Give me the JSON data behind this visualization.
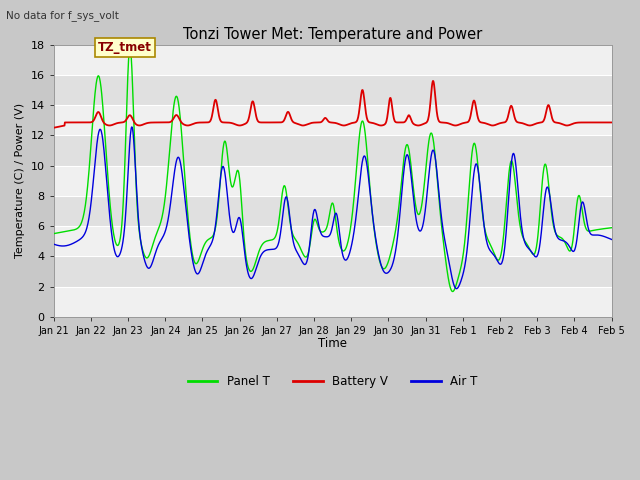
{
  "title": "Tonzi Tower Met: Temperature and Power",
  "top_left_text": "No data for f_sys_volt",
  "annotation_text": "TZ_tmet",
  "ylabel": "Temperature (C) / Power (V)",
  "xlabel": "Time",
  "ylim": [
    0,
    18
  ],
  "yticks": [
    0,
    2,
    4,
    6,
    8,
    10,
    12,
    14,
    16,
    18
  ],
  "xtick_labels": [
    "Jan 21",
    "Jan 22",
    "Jan 23",
    "Jan 24",
    "Jan 25",
    "Jan 26",
    "Jan 27",
    "Jan 28",
    "Jan 29",
    "Jan 30",
    "Jan 31",
    "Feb 1",
    "Feb 2",
    "Feb 3",
    "Feb 4",
    "Feb 5"
  ],
  "plot_bg_light": "#f0f0f0",
  "plot_bg_dark": "#e0e0e0",
  "legend_items": [
    {
      "label": "Panel T",
      "color": "#00dd00"
    },
    {
      "label": "Battery V",
      "color": "#dd0000"
    },
    {
      "label": "Air T",
      "color": "#0000dd"
    }
  ],
  "annotation_bg": "#ffffcc",
  "annotation_border": "#aa8800",
  "fig_bg": "#c8c8c8"
}
